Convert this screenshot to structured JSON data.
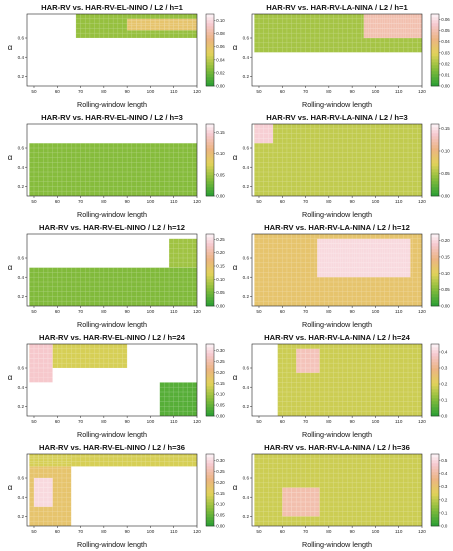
{
  "chart_data": [
    {
      "type": "heatmap",
      "title": "HAR-RV vs. HAR-RV-EL-NINO / L2 / h=1",
      "xlabel": "Rolling-window length",
      "ylabel": "α",
      "xticks": [
        50,
        60,
        70,
        80,
        90,
        100,
        110,
        120
      ],
      "yticks": [
        0.2,
        0.4,
        0.6
      ],
      "xlim": [
        47,
        120
      ],
      "ylim": [
        0.1,
        0.85
      ],
      "colorbar_ticks": [
        "0.00",
        "0.02",
        "0.04",
        "0.06",
        "0.08",
        "0.10"
      ],
      "zlim": [
        0,
        0.11
      ],
      "regions": [
        {
          "x": [
            68,
            120
          ],
          "y": [
            0.6,
            0.85
          ],
          "z": 0.03
        },
        {
          "x": [
            90,
            120
          ],
          "y": [
            0.68,
            0.8
          ],
          "z": 0.06
        }
      ]
    },
    {
      "type": "heatmap",
      "title": "HAR-RV vs. HAR-RV-LA-NINA / L2 / h=1",
      "xlabel": "Rolling-window length",
      "ylabel": "α",
      "xticks": [
        50,
        60,
        70,
        80,
        90,
        100,
        110,
        120
      ],
      "yticks": [
        0.2,
        0.4,
        0.6
      ],
      "xlim": [
        47,
        120
      ],
      "ylim": [
        0.1,
        0.85
      ],
      "colorbar_ticks": [
        "0.00",
        "0.01",
        "0.02",
        "0.03",
        "0.04",
        "0.05",
        "0.06"
      ],
      "zlim": [
        0,
        0.065
      ],
      "regions": [
        {
          "x": [
            48,
            120
          ],
          "y": [
            0.45,
            0.85
          ],
          "z": 0.02
        },
        {
          "x": [
            95,
            120
          ],
          "y": [
            0.6,
            0.85
          ],
          "z": 0.05
        }
      ]
    },
    {
      "type": "heatmap",
      "title": "HAR-RV vs. HAR-RV-EL-NINO / L2 / h=3",
      "xlabel": "Rolling-window length",
      "ylabel": "α",
      "xticks": [
        50,
        60,
        70,
        80,
        90,
        100,
        110,
        120
      ],
      "yticks": [
        0.2,
        0.4,
        0.6
      ],
      "xlim": [
        47,
        120
      ],
      "ylim": [
        0.1,
        0.85
      ],
      "colorbar_ticks": [
        "0.00",
        "0.05",
        "0.10",
        "0.15"
      ],
      "zlim": [
        0,
        0.17
      ],
      "regions": [
        {
          "x": [
            48,
            120
          ],
          "y": [
            0.1,
            0.65
          ],
          "z": 0.04
        }
      ]
    },
    {
      "type": "heatmap",
      "title": "HAR-RV vs. HAR-RV-LA-NINA / L2 / h=3",
      "xlabel": "Rolling-window length",
      "ylabel": "α",
      "xticks": [
        50,
        60,
        70,
        80,
        90,
        100,
        110,
        120
      ],
      "yticks": [
        0.2,
        0.4,
        0.6
      ],
      "xlim": [
        47,
        120
      ],
      "ylim": [
        0.1,
        0.85
      ],
      "colorbar_ticks": [
        "0.00",
        "0.05",
        "0.10",
        "0.15"
      ],
      "zlim": [
        0,
        0.16
      ],
      "regions": [
        {
          "x": [
            48,
            120
          ],
          "y": [
            0.1,
            0.85
          ],
          "z": 0.06
        },
        {
          "x": [
            48,
            56
          ],
          "y": [
            0.65,
            0.85
          ],
          "z": 0.14
        }
      ]
    },
    {
      "type": "heatmap",
      "title": "HAR-RV vs. HAR-RV-EL-NINO / L2 / h=12",
      "xlabel": "Rolling-window length",
      "ylabel": "α",
      "xticks": [
        50,
        60,
        70,
        80,
        90,
        100,
        110,
        120
      ],
      "yticks": [
        0.2,
        0.4,
        0.6
      ],
      "xlim": [
        47,
        120
      ],
      "ylim": [
        0.1,
        0.85
      ],
      "colorbar_ticks": [
        "0.00",
        "0.05",
        "0.10",
        "0.15",
        "0.20",
        "0.25"
      ],
      "zlim": [
        0,
        0.27
      ],
      "regions": [
        {
          "x": [
            48,
            120
          ],
          "y": [
            0.1,
            0.5
          ],
          "z": 0.06
        },
        {
          "x": [
            108,
            120
          ],
          "y": [
            0.5,
            0.8
          ],
          "z": 0.08
        }
      ]
    },
    {
      "type": "heatmap",
      "title": "HAR-RV vs. HAR-RV-LA-NINA / L2 / h=12",
      "xlabel": "Rolling-window length",
      "ylabel": "α",
      "xticks": [
        50,
        60,
        70,
        80,
        90,
        100,
        110,
        120
      ],
      "yticks": [
        0.2,
        0.4,
        0.6
      ],
      "xlim": [
        47,
        120
      ],
      "ylim": [
        0.1,
        0.85
      ],
      "colorbar_ticks": [
        "0.00",
        "0.05",
        "0.10",
        "0.15",
        "0.20"
      ],
      "zlim": [
        0,
        0.22
      ],
      "regions": [
        {
          "x": [
            48,
            120
          ],
          "y": [
            0.1,
            0.85
          ],
          "z": 0.12
        },
        {
          "x": [
            75,
            115
          ],
          "y": [
            0.4,
            0.8
          ],
          "z": 0.2
        }
      ]
    },
    {
      "type": "heatmap",
      "title": "HAR-RV vs. HAR-RV-EL-NINO / L2 / h=24",
      "xlabel": "Rolling-window length",
      "ylabel": "α",
      "xticks": [
        50,
        60,
        70,
        80,
        90,
        100,
        110,
        120
      ],
      "yticks": [
        0.2,
        0.4,
        0.6
      ],
      "xlim": [
        47,
        120
      ],
      "ylim": [
        0.1,
        0.85
      ],
      "colorbar_ticks": [
        "0.00",
        "0.05",
        "0.10",
        "0.15",
        "0.20",
        "0.25",
        "0.30"
      ],
      "zlim": [
        0,
        0.33
      ],
      "regions": [
        {
          "x": [
            48,
            90
          ],
          "y": [
            0.6,
            0.85
          ],
          "z": 0.14
        },
        {
          "x": [
            48,
            58
          ],
          "y": [
            0.45,
            0.85
          ],
          "z": 0.28
        },
        {
          "x": [
            104,
            120
          ],
          "y": [
            0.1,
            0.45
          ],
          "z": 0.04
        }
      ]
    },
    {
      "type": "heatmap",
      "title": "HAR-RV vs. HAR-RV-LA-NINA / L2 / h=24",
      "xlabel": "Rolling-window length",
      "ylabel": "α",
      "xticks": [
        50,
        60,
        70,
        80,
        90,
        100,
        110,
        120
      ],
      "yticks": [
        0.2,
        0.4,
        0.6
      ],
      "xlim": [
        47,
        120
      ],
      "ylim": [
        0.1,
        0.85
      ],
      "colorbar_ticks": [
        "0.0",
        "0.1",
        "0.2",
        "0.3",
        "0.4"
      ],
      "zlim": [
        0,
        0.45
      ],
      "regions": [
        {
          "x": [
            58,
            120
          ],
          "y": [
            0.1,
            0.85
          ],
          "z": 0.18
        },
        {
          "x": [
            66,
            76
          ],
          "y": [
            0.55,
            0.8
          ],
          "z": 0.36
        }
      ]
    },
    {
      "type": "heatmap",
      "title": "HAR-RV vs. HAR-RV-EL-NINO / L2 / h=36",
      "xlabel": "Rolling-window length",
      "ylabel": "α",
      "xticks": [
        50,
        60,
        70,
        80,
        90,
        100,
        110,
        120
      ],
      "yticks": [
        0.2,
        0.4,
        0.6
      ],
      "xlim": [
        47,
        120
      ],
      "ylim": [
        0.1,
        0.85
      ],
      "colorbar_ticks": [
        "0.00",
        "0.05",
        "0.10",
        "0.15",
        "0.20",
        "0.25",
        "0.30"
      ],
      "zlim": [
        0,
        0.33
      ],
      "regions": [
        {
          "x": [
            48,
            66
          ],
          "y": [
            0.1,
            0.85
          ],
          "z": 0.18
        },
        {
          "x": [
            48,
            120
          ],
          "y": [
            0.72,
            0.85
          ],
          "z": 0.14
        },
        {
          "x": [
            50,
            58
          ],
          "y": [
            0.3,
            0.6
          ],
          "z": 0.3
        }
      ]
    },
    {
      "type": "heatmap",
      "title": "HAR-RV vs. HAR-RV-LA-NINA / L2 / h=36",
      "xlabel": "Rolling-window length",
      "ylabel": "α",
      "xticks": [
        50,
        60,
        70,
        80,
        90,
        100,
        110,
        120
      ],
      "yticks": [
        0.2,
        0.4,
        0.6
      ],
      "xlim": [
        47,
        120
      ],
      "ylim": [
        0.1,
        0.85
      ],
      "colorbar_ticks": [
        "0.0",
        "0.1",
        "0.2",
        "0.3",
        "0.4",
        "0.5"
      ],
      "zlim": [
        0,
        0.55
      ],
      "regions": [
        {
          "x": [
            48,
            120
          ],
          "y": [
            0.1,
            0.85
          ],
          "z": 0.22
        },
        {
          "x": [
            60,
            76
          ],
          "y": [
            0.2,
            0.5
          ],
          "z": 0.42
        }
      ]
    }
  ]
}
